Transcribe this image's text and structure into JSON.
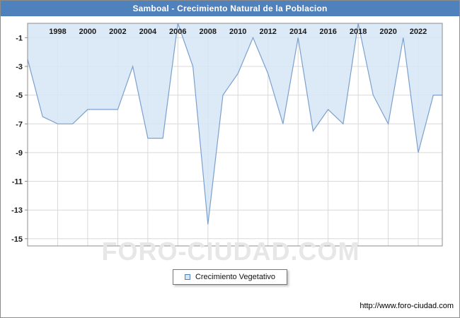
{
  "window": {
    "title": "Samboal - Crecimiento Natural de la Poblacion",
    "title_bg": "#4f81bd"
  },
  "legend": {
    "label": "Crecimiento Vegetativo"
  },
  "watermark": "FORO-CIUDAD.COM",
  "footer": {
    "url": "http://www.foro-ciudad.com"
  },
  "chart_data": {
    "type": "area",
    "title": "Samboal - Crecimiento Natural de la Poblacion",
    "series_name": "Crecimiento Vegetativo",
    "x": [
      1996,
      1997,
      1998,
      1999,
      2000,
      2001,
      2002,
      2003,
      2004,
      2005,
      2006,
      2007,
      2008,
      2009,
      2010,
      2011,
      2012,
      2013,
      2014,
      2015,
      2016,
      2017,
      2018,
      2019,
      2020,
      2021,
      2022,
      2023
    ],
    "values": [
      -2.5,
      -6.5,
      -7,
      -7,
      -6,
      -6,
      -6,
      -3,
      -8,
      -8,
      0,
      -3,
      -14,
      -5,
      -3.5,
      -1,
      -3.5,
      -7,
      -1,
      -7.5,
      -6,
      -7,
      0,
      -5,
      -7,
      -1,
      -9,
      -5
    ],
    "x_ticks": [
      1998,
      2000,
      2002,
      2004,
      2006,
      2008,
      2010,
      2012,
      2014,
      2016,
      2018,
      2020,
      2022
    ],
    "y_ticks": [
      -1,
      -3,
      -5,
      -7,
      -9,
      -11,
      -13,
      -15
    ],
    "xlim": [
      1996,
      2023.6
    ],
    "ylim": [
      -15.5,
      0
    ],
    "grid": true,
    "legend_position": "bottom",
    "colors": {
      "fill": "#d6e6f7",
      "line": "#7ba0cd",
      "grid": "#d9d9d9",
      "axis": "#8c8c8c",
      "tick_label": "#1a1a1a"
    }
  }
}
